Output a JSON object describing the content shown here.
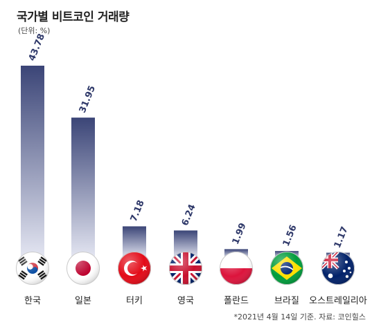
{
  "chart_data": {
    "type": "bar",
    "title": "국가별 비트코인 거래량",
    "unit_label": "(단위: %)",
    "categories": [
      "한국",
      "일본",
      "터키",
      "영국",
      "폴란드",
      "브라질",
      "오스트레일리아"
    ],
    "values": [
      43.78,
      31.95,
      7.18,
      6.24,
      1.99,
      1.56,
      1.17
    ],
    "value_labels": [
      "43.78",
      "31.95",
      "7.18",
      "6.24",
      "1.99",
      "1.56",
      "1.17"
    ],
    "flag_icons": [
      "south-korea-flag-icon",
      "japan-flag-icon",
      "turkey-flag-icon",
      "uk-flag-icon",
      "poland-flag-icon",
      "brazil-flag-icon",
      "australia-flag-icon"
    ],
    "ylim": [
      0,
      43.78
    ],
    "grid": false,
    "colors": {
      "bar_top": "#3b4577",
      "bar_bottom": "#e4e6f2",
      "value_text": "#2e3869"
    },
    "footnote": "*2021년 4월 14일 기준. 자료: 코인힐스"
  }
}
